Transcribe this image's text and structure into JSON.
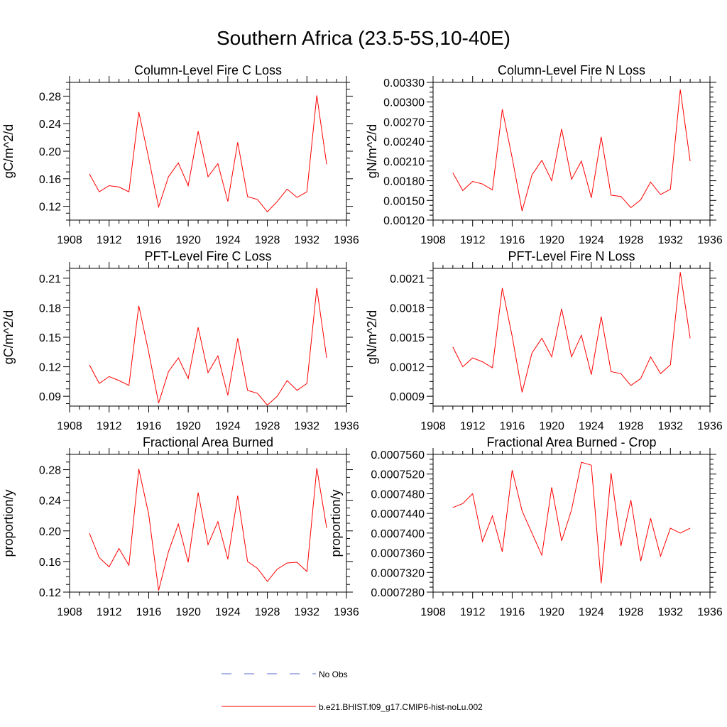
{
  "title": "Southern Africa (23.5-5S,10-40E)",
  "legend": {
    "obs_label": "No Obs",
    "model_label": "b.e21.BHIST.f09_g17.CMIP6-hist-noLu.002",
    "obs_color": "#5b6bd1",
    "model_color": "#ff0000"
  },
  "chart_data": [
    {
      "type": "line",
      "title": "Column-Level Fire C Loss",
      "ylabel": "gC/m^2/d",
      "xlim": [
        1908,
        1936
      ],
      "ylim": [
        0.1,
        0.3
      ],
      "xticks": [
        "1908",
        "1912",
        "1916",
        "1920",
        "1924",
        "1928",
        "1932",
        "1936"
      ],
      "yticks": [
        "0.12",
        "0.16",
        "0.20",
        "0.24",
        "0.28"
      ],
      "series": [
        {
          "name": "b.e21.BHIST.f09_g17.CMIP6-hist-noLu.002",
          "color": "#ff0000",
          "x": [
            1910,
            1911,
            1912,
            1913,
            1914,
            1915,
            1916,
            1917,
            1918,
            1919,
            1920,
            1921,
            1922,
            1923,
            1924,
            1925,
            1926,
            1927,
            1928,
            1929,
            1930,
            1931,
            1932,
            1933,
            1934
          ],
          "y": [
            0.167,
            0.141,
            0.15,
            0.148,
            0.141,
            0.257,
            0.19,
            0.119,
            0.163,
            0.183,
            0.15,
            0.229,
            0.163,
            0.182,
            0.127,
            0.213,
            0.134,
            0.13,
            0.112,
            0.127,
            0.145,
            0.133,
            0.141,
            0.281,
            0.181
          ]
        }
      ]
    },
    {
      "type": "line",
      "title": "Column-Level Fire N Loss",
      "ylabel": "gN/m^2/d",
      "xlim": [
        1908,
        1936
      ],
      "ylim": [
        0.0012,
        0.0033
      ],
      "xticks": [
        "1908",
        "1912",
        "1916",
        "1920",
        "1924",
        "1928",
        "1932",
        "1936"
      ],
      "yticks": [
        "0.00120",
        "0.00150",
        "0.00180",
        "0.00210",
        "0.00240",
        "0.00270",
        "0.00300",
        "0.00330"
      ],
      "series": [
        {
          "name": "b.e21.BHIST.f09_g17.CMIP6-hist-noLu.002",
          "color": "#ff0000",
          "x": [
            1910,
            1911,
            1912,
            1913,
            1914,
            1915,
            1916,
            1917,
            1918,
            1919,
            1920,
            1921,
            1922,
            1923,
            1924,
            1925,
            1926,
            1927,
            1928,
            1929,
            1930,
            1931,
            1932,
            1933,
            1934
          ],
          "y": [
            0.00192,
            0.00165,
            0.00179,
            0.00175,
            0.00166,
            0.00289,
            0.00215,
            0.00134,
            0.00189,
            0.00211,
            0.0018,
            0.00259,
            0.00182,
            0.0021,
            0.00154,
            0.00247,
            0.00158,
            0.00156,
            0.00139,
            0.00151,
            0.00178,
            0.00159,
            0.00167,
            0.00319,
            0.0021
          ]
        }
      ]
    },
    {
      "type": "line",
      "title": "PFT-Level Fire C Loss",
      "ylabel": "gC/m^2/d",
      "xlim": [
        1908,
        1936
      ],
      "ylim": [
        0.08,
        0.22
      ],
      "xticks": [
        "1908",
        "1912",
        "1916",
        "1920",
        "1924",
        "1928",
        "1932",
        "1936"
      ],
      "yticks": [
        "0.09",
        "0.12",
        "0.15",
        "0.18",
        "0.21"
      ],
      "series": [
        {
          "name": "b.e21.BHIST.f09_g17.CMIP6-hist-noLu.002",
          "color": "#ff0000",
          "x": [
            1910,
            1911,
            1912,
            1913,
            1914,
            1915,
            1916,
            1917,
            1918,
            1919,
            1920,
            1921,
            1922,
            1923,
            1924,
            1925,
            1926,
            1927,
            1928,
            1929,
            1930,
            1931,
            1932,
            1933,
            1934
          ],
          "y": [
            0.122,
            0.103,
            0.11,
            0.106,
            0.101,
            0.182,
            0.135,
            0.083,
            0.115,
            0.129,
            0.108,
            0.16,
            0.114,
            0.131,
            0.091,
            0.149,
            0.096,
            0.093,
            0.081,
            0.09,
            0.106,
            0.096,
            0.103,
            0.2,
            0.129
          ]
        }
      ]
    },
    {
      "type": "line",
      "title": "PFT-Level Fire N Loss",
      "ylabel": "gN/m^2/d",
      "xlim": [
        1908,
        1936
      ],
      "ylim": [
        0.0008,
        0.0022
      ],
      "xticks": [
        "1908",
        "1912",
        "1916",
        "1920",
        "1924",
        "1928",
        "1932",
        "1936"
      ],
      "yticks": [
        "0.0009",
        "0.0012",
        "0.0015",
        "0.0018",
        "0.0021"
      ],
      "series": [
        {
          "name": "b.e21.BHIST.f09_g17.CMIP6-hist-noLu.002",
          "color": "#ff0000",
          "x": [
            1910,
            1911,
            1912,
            1913,
            1914,
            1915,
            1916,
            1917,
            1918,
            1919,
            1920,
            1921,
            1922,
            1923,
            1924,
            1925,
            1926,
            1927,
            1928,
            1929,
            1930,
            1931,
            1932,
            1933,
            1934
          ],
          "y": [
            0.0014,
            0.0012,
            0.00129,
            0.00125,
            0.00119,
            0.002,
            0.00151,
            0.00094,
            0.00134,
            0.00149,
            0.0013,
            0.00179,
            0.0013,
            0.00152,
            0.00112,
            0.00171,
            0.00115,
            0.00113,
            0.00101,
            0.00108,
            0.0013,
            0.00113,
            0.00122,
            0.00216,
            0.00149
          ]
        }
      ]
    },
    {
      "type": "line",
      "title": "Fractional Area Burned",
      "ylabel": "proportion/y",
      "xlim": [
        1908,
        1936
      ],
      "ylim": [
        0.12,
        0.3
      ],
      "xticks": [
        "1908",
        "1912",
        "1916",
        "1920",
        "1924",
        "1928",
        "1932",
        "1936"
      ],
      "yticks": [
        "0.12",
        "0.16",
        "0.20",
        "0.24",
        "0.28"
      ],
      "series": [
        {
          "name": "b.e21.BHIST.f09_g17.CMIP6-hist-noLu.002",
          "color": "#ff0000",
          "x": [
            1910,
            1911,
            1912,
            1913,
            1914,
            1915,
            1916,
            1917,
            1918,
            1919,
            1920,
            1921,
            1922,
            1923,
            1924,
            1925,
            1926,
            1927,
            1928,
            1929,
            1930,
            1931,
            1932,
            1933,
            1934
          ],
          "y": [
            0.197,
            0.165,
            0.153,
            0.177,
            0.155,
            0.281,
            0.222,
            0.122,
            0.173,
            0.209,
            0.159,
            0.25,
            0.182,
            0.212,
            0.163,
            0.246,
            0.16,
            0.151,
            0.134,
            0.15,
            0.158,
            0.159,
            0.147,
            0.282,
            0.204
          ]
        }
      ]
    },
    {
      "type": "line",
      "title": "Fractional Area Burned - Crop",
      "ylabel": "proportion/y",
      "xlim": [
        1908,
        1936
      ],
      "ylim": [
        0.000728,
        0.000756
      ],
      "xticks": [
        "1908",
        "1912",
        "1916",
        "1920",
        "1924",
        "1928",
        "1932",
        "1936"
      ],
      "yticks": [
        "0.0007280",
        "0.0007320",
        "0.0007360",
        "0.0007400",
        "0.0007440",
        "0.0007480",
        "0.0007520",
        "0.0007560"
      ],
      "series": [
        {
          "name": "b.e21.BHIST.f09_g17.CMIP6-hist-noLu.002",
          "color": "#ff0000",
          "x": [
            1910,
            1911,
            1912,
            1913,
            1914,
            1915,
            1916,
            1917,
            1918,
            1919,
            1920,
            1921,
            1922,
            1923,
            1924,
            1925,
            1926,
            1927,
            1928,
            1929,
            1930,
            1931,
            1932,
            1933,
            1934
          ],
          "y": [
            0.0007452,
            0.000746,
            0.000748,
            0.0007383,
            0.0007435,
            0.0007362,
            0.0007528,
            0.0007445,
            0.00074,
            0.0007355,
            0.0007493,
            0.0007384,
            0.0007447,
            0.0007544,
            0.0007538,
            0.0007298,
            0.0007522,
            0.0007374,
            0.0007467,
            0.0007343,
            0.000743,
            0.0007353,
            0.000741,
            0.00074,
            0.000741
          ]
        }
      ]
    }
  ]
}
